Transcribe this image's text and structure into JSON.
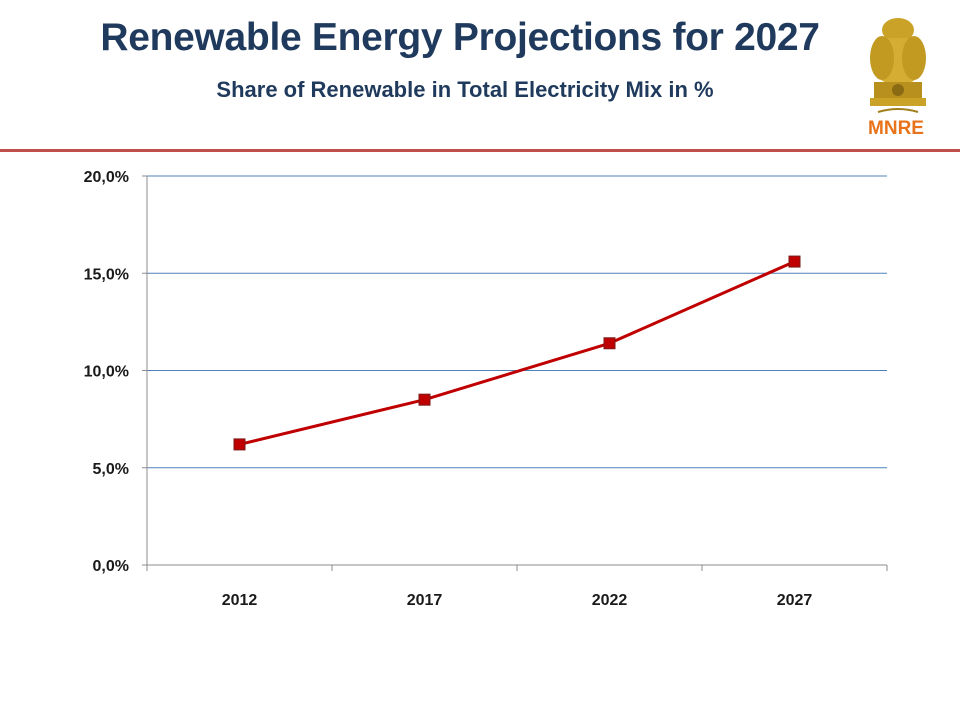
{
  "header": {
    "title": "Renewable Energy Projections for 2027",
    "subtitle": "Share of Renewable in Total Electricity Mix in %",
    "logo_text": "MNRE",
    "accent_color": "#c0504d",
    "title_color": "#1f3a5c"
  },
  "chart_data": {
    "type": "line",
    "title": "",
    "xlabel": "",
    "ylabel": "",
    "categories": [
      "2012",
      "2017",
      "2022",
      "2027"
    ],
    "series": [
      {
        "values": [
          6.2,
          8.5,
          11.4,
          15.6
        ],
        "color": "#c00000",
        "marker": "square"
      }
    ],
    "ylim": [
      0,
      20
    ],
    "yticks": [
      "0,0%",
      "5,0%",
      "10,0%",
      "15,0%",
      "20,0%"
    ],
    "grid": true,
    "legend": "none"
  }
}
